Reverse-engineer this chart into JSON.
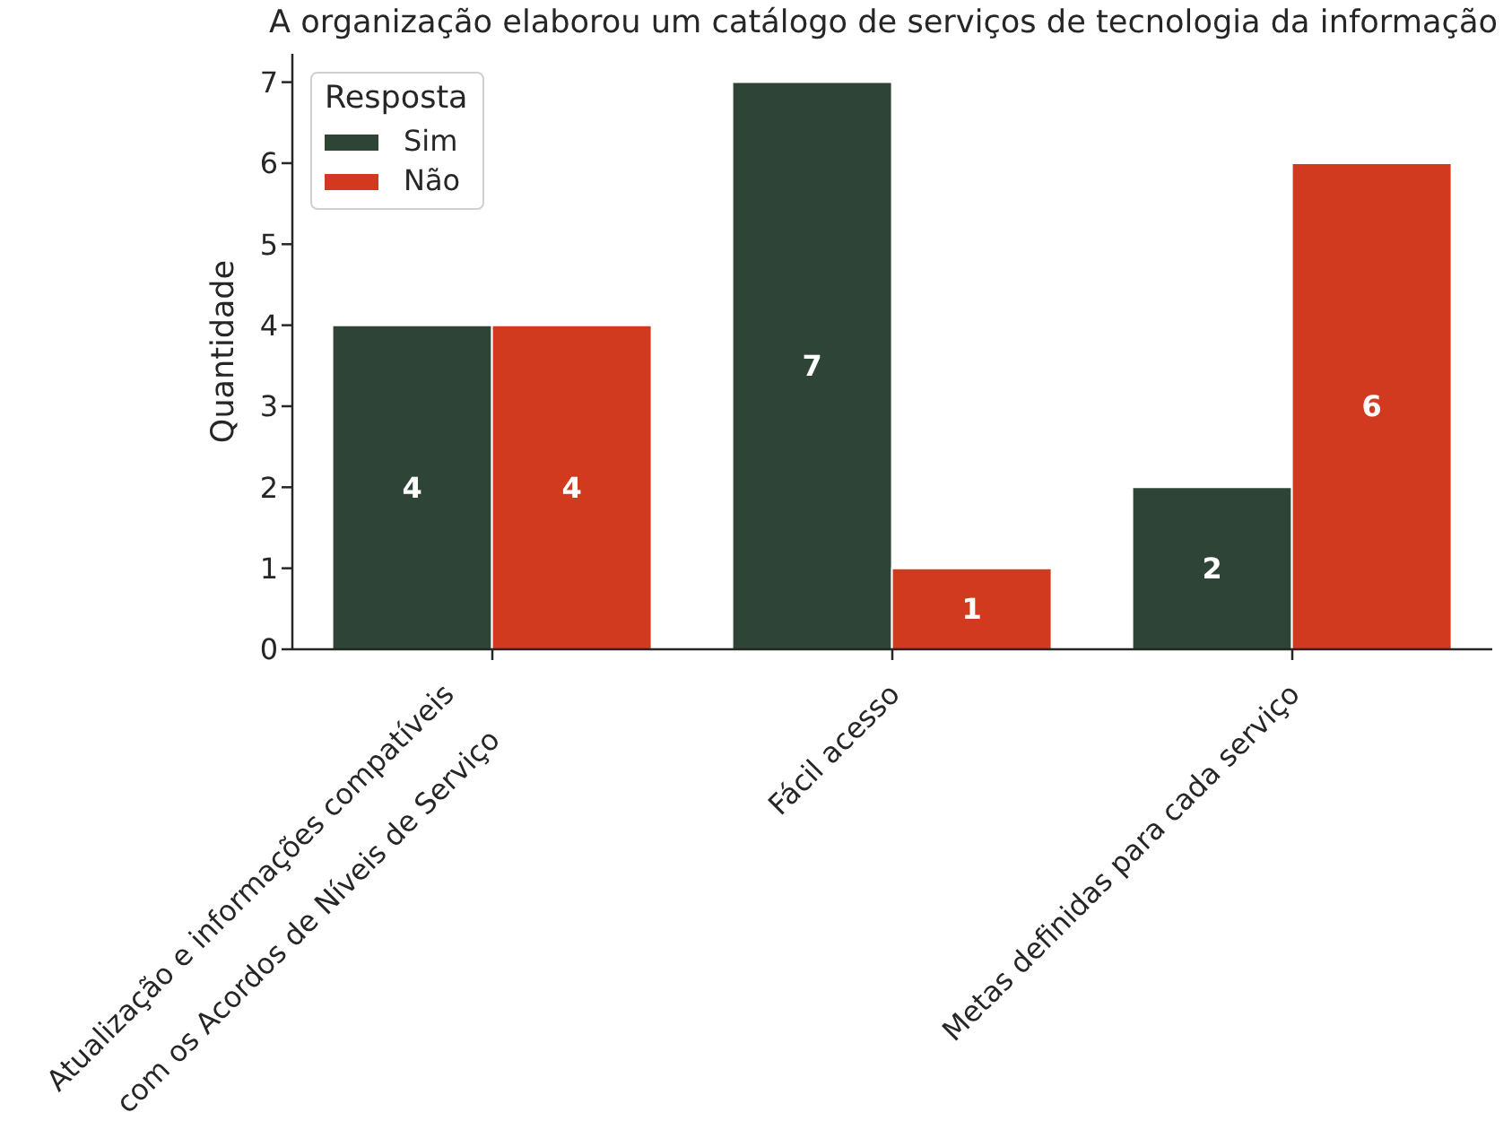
{
  "chart_data": {
    "type": "bar",
    "title": "A organização elaborou um catálogo de serviços de tecnologia da informação",
    "ylabel": "Quantidade",
    "legend_title": "Resposta",
    "categories": [
      "Atualização e informações compatíveis\ncom os Acordos de Níveis de Serviço",
      "Fácil acesso",
      "Metas definidas para cada serviço"
    ],
    "series": [
      {
        "name": "Sim",
        "color": "#2e4437",
        "values": [
          4,
          7,
          2
        ]
      },
      {
        "name": "Não",
        "color": "#d13a1f",
        "values": [
          4,
          1,
          6
        ]
      }
    ],
    "ylim": [
      0,
      7.35
    ],
    "yticks": [
      0,
      1,
      2,
      3,
      4,
      5,
      6,
      7
    ],
    "data_labels": true,
    "legend": "top left",
    "grid": false
  }
}
